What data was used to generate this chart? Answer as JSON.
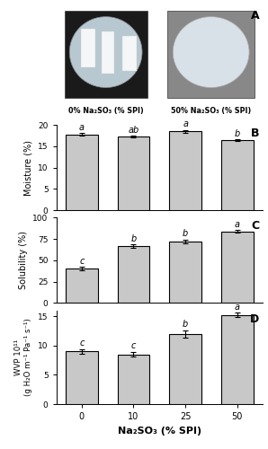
{
  "categories": [
    "0",
    "10",
    "25",
    "50"
  ],
  "moisture_values": [
    17.8,
    17.3,
    18.5,
    16.4
  ],
  "moisture_errors": [
    0.25,
    0.25,
    0.35,
    0.25
  ],
  "moisture_letters": [
    "a",
    "ab",
    "a",
    "b"
  ],
  "moisture_ylim": [
    0,
    20
  ],
  "moisture_yticks": [
    0,
    5,
    10,
    15,
    20
  ],
  "moisture_ylabel": "Moisture (%)",
  "solubility_values": [
    40.0,
    67.0,
    72.0,
    84.0
  ],
  "solubility_errors": [
    2.0,
    2.0,
    2.5,
    2.0
  ],
  "solubility_letters": [
    "c",
    "b",
    "b",
    "a"
  ],
  "solubility_ylim": [
    0,
    100
  ],
  "solubility_yticks": [
    0,
    25,
    50,
    75,
    100
  ],
  "solubility_ylabel": "Solubility (%)",
  "wvp_values": [
    9.0,
    8.5,
    12.0,
    15.2
  ],
  "wvp_errors": [
    0.4,
    0.4,
    0.6,
    0.4
  ],
  "wvp_letters": [
    "c",
    "c",
    "b",
    "a"
  ],
  "wvp_ylim": [
    0,
    16
  ],
  "wvp_yticks": [
    0,
    5,
    10,
    15
  ],
  "wvp_ylabel": "WVP 10¹¹\n(g H₂O m⁻¹ Pa⁻¹ s⁻¹)",
  "xlabel": "Na₂SO₃ (% SPI)",
  "bar_color": "#c8c8c8",
  "bar_edgecolor": "#000000",
  "panel_labels": [
    "A",
    "B",
    "C",
    "D"
  ],
  "img_label_0": "0% Na₂SO₃ (% SPI)",
  "img_label_50": "50% Na₂SO₃ (% SPI)",
  "background_color": "#ffffff",
  "linewidth": 0.8,
  "capsize": 2
}
